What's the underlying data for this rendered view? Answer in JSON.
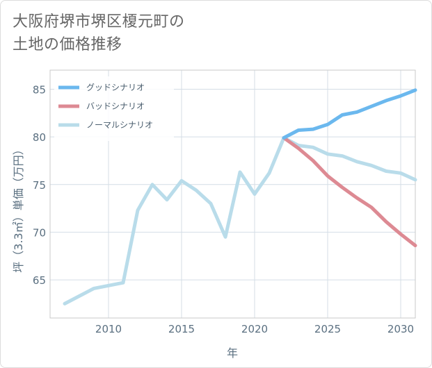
{
  "title_lines": [
    "大阪府堺市堺区榎元町の",
    "土地の価格推移"
  ],
  "chart_data": {
    "type": "line",
    "xlabel": "年",
    "ylabel": "坪（3.3㎡）単価（万円）",
    "xlim": [
      2006,
      2031
    ],
    "ylim": [
      61,
      87
    ],
    "xticks": [
      2010,
      2015,
      2020,
      2025,
      2030
    ],
    "yticks": [
      65,
      70,
      75,
      80,
      85
    ],
    "grid": true,
    "legend_position": "top-left",
    "series": [
      {
        "name": "グッドシナリオ",
        "color": "#6bb8ee",
        "x": [
          2022,
          2023,
          2024,
          2025,
          2026,
          2027,
          2028,
          2029,
          2030,
          2031
        ],
        "y": [
          79.9,
          80.7,
          80.8,
          81.3,
          82.3,
          82.6,
          83.2,
          83.8,
          84.3,
          84.9
        ]
      },
      {
        "name": "バッドシナリオ",
        "color": "#dd8a93",
        "x": [
          2022,
          2023,
          2024,
          2025,
          2026,
          2027,
          2028,
          2029,
          2030,
          2031
        ],
        "y": [
          79.9,
          78.8,
          77.5,
          75.9,
          74.7,
          73.6,
          72.6,
          71.1,
          69.8,
          68.6
        ]
      },
      {
        "name": "ノーマルシナリオ",
        "color": "#b9dcea",
        "x": [
          2007,
          2008,
          2009,
          2010,
          2011,
          2012,
          2013,
          2014,
          2015,
          2016,
          2017,
          2018,
          2019,
          2020,
          2021,
          2022,
          2023,
          2024,
          2025,
          2026,
          2027,
          2028,
          2029,
          2030,
          2031
        ],
        "y": [
          62.5,
          63.3,
          64.1,
          64.4,
          64.7,
          72.3,
          75.0,
          73.4,
          75.4,
          74.4,
          73.0,
          69.5,
          76.3,
          74.0,
          76.2,
          79.9,
          79.1,
          78.9,
          78.2,
          78.0,
          77.4,
          77.0,
          76.4,
          76.2,
          75.5
        ]
      }
    ]
  }
}
